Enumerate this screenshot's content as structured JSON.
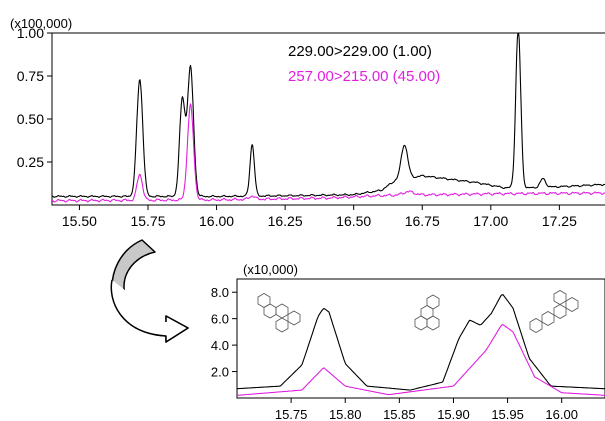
{
  "colors": {
    "series1": "#000000",
    "series2": "#e020e0",
    "arrow_fill": "#c8c8c8"
  },
  "icons": [
    "chrysene-structure-icon",
    "triphenylene-structure-icon",
    "benz-a-anthracene-structure-icon",
    "curved-arrow-icon"
  ],
  "chart_data": [
    {
      "type": "line",
      "title": "",
      "multiplier_label": "(x100,000)",
      "xlabel": "",
      "ylabel": "",
      "xlim": [
        15.4,
        17.42
      ],
      "ylim": [
        0,
        1.0
      ],
      "x_ticks": [
        "15.50",
        "15.75",
        "16.00",
        "16.25",
        "16.50",
        "16.75",
        "17.00",
        "17.25"
      ],
      "x_tick_values": [
        15.5,
        15.75,
        16.0,
        16.25,
        16.5,
        16.75,
        17.0,
        17.25
      ],
      "y_ticks": [
        "0.25",
        "0.50",
        "0.75",
        "1.00"
      ],
      "y_tick_values": [
        0.25,
        0.5,
        0.75,
        1.0
      ],
      "grid": false,
      "legend": "top-center",
      "series": [
        {
          "name": "229.00>229.00 (1.00)",
          "color": "#000000",
          "baseline": [
            [
              15.4,
              0.05
            ],
            [
              15.7,
              0.05
            ],
            [
              16.0,
              0.05
            ],
            [
              16.3,
              0.055
            ],
            [
              16.5,
              0.06
            ],
            [
              16.6,
              0.085
            ],
            [
              16.65,
              0.14
            ],
            [
              16.75,
              0.17
            ],
            [
              16.85,
              0.15
            ],
            [
              16.95,
              0.13
            ],
            [
              17.05,
              0.1
            ],
            [
              17.15,
              0.1
            ],
            [
              17.3,
              0.11
            ],
            [
              17.42,
              0.12
            ]
          ],
          "peaks": [
            {
              "rt": 15.72,
              "height": 0.68,
              "width": 0.011
            },
            {
              "rt": 15.875,
              "height": 0.56,
              "width": 0.01
            },
            {
              "rt": 15.905,
              "height": 0.75,
              "width": 0.011
            },
            {
              "rt": 16.13,
              "height": 0.3,
              "width": 0.008
            },
            {
              "rt": 16.685,
              "height": 0.2,
              "width": 0.012
            },
            {
              "rt": 17.1,
              "height": 0.93,
              "width": 0.009
            },
            {
              "rt": 17.19,
              "height": 0.05,
              "width": 0.01
            }
          ]
        },
        {
          "name": "257.00>215.00 (45.00)",
          "color": "#e020e0",
          "baseline": [
            [
              15.4,
              0.025
            ],
            [
              16.0,
              0.03
            ],
            [
              16.4,
              0.04
            ],
            [
              16.6,
              0.055
            ],
            [
              17.0,
              0.065
            ],
            [
              17.42,
              0.07
            ]
          ],
          "peaks": [
            {
              "rt": 15.72,
              "height": 0.15,
              "width": 0.01
            },
            {
              "rt": 15.905,
              "height": 0.55,
              "width": 0.011
            },
            {
              "rt": 16.13,
              "height": 0.02,
              "width": 0.01
            },
            {
              "rt": 16.7,
              "height": 0.02,
              "width": 0.02
            }
          ]
        }
      ]
    },
    {
      "type": "line",
      "title": "",
      "multiplier_label": "(x10,000)",
      "xlabel": "",
      "ylabel": "",
      "xlim": [
        15.7,
        16.04
      ],
      "ylim": [
        0,
        9.0
      ],
      "x_ticks": [
        "15.75",
        "15.80",
        "15.85",
        "15.90",
        "15.95",
        "16.00"
      ],
      "x_tick_values": [
        15.75,
        15.8,
        15.85,
        15.9,
        15.95,
        16.0
      ],
      "y_ticks": [
        "2.0",
        "4.0",
        "6.0",
        "8.0"
      ],
      "y_tick_values": [
        2.0,
        4.0,
        6.0,
        8.0
      ],
      "grid": false,
      "series": [
        {
          "name": "229.00>229.00 (1.00)",
          "color": "#000000",
          "points": [
            [
              15.7,
              0.7
            ],
            [
              15.74,
              0.9
            ],
            [
              15.76,
              2.5
            ],
            [
              15.775,
              6.2
            ],
            [
              15.78,
              6.8
            ],
            [
              15.785,
              6.5
            ],
            [
              15.8,
              2.6
            ],
            [
              15.82,
              0.9
            ],
            [
              15.86,
              0.6
            ],
            [
              15.89,
              1.2
            ],
            [
              15.905,
              4.5
            ],
            [
              15.915,
              5.9
            ],
            [
              15.925,
              5.5
            ],
            [
              15.935,
              6.4
            ],
            [
              15.945,
              7.9
            ],
            [
              15.955,
              6.8
            ],
            [
              15.97,
              3.0
            ],
            [
              15.99,
              0.9
            ],
            [
              16.04,
              0.7
            ]
          ]
        },
        {
          "name": "257.00>215.00 (45.00)",
          "color": "#e020e0",
          "points": [
            [
              15.7,
              0.2
            ],
            [
              15.76,
              0.6
            ],
            [
              15.78,
              2.3
            ],
            [
              15.8,
              0.9
            ],
            [
              15.84,
              0.25
            ],
            [
              15.9,
              0.9
            ],
            [
              15.93,
              3.6
            ],
            [
              15.945,
              5.6
            ],
            [
              15.955,
              5.0
            ],
            [
              15.975,
              1.6
            ],
            [
              16.0,
              0.4
            ],
            [
              16.04,
              0.2
            ]
          ]
        }
      ]
    }
  ]
}
